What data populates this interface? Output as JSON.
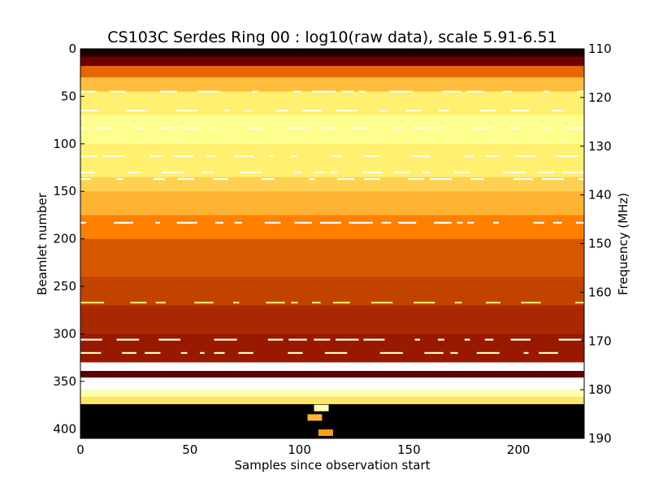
{
  "chart_data": {
    "type": "heatmap",
    "title": "CS103C Serdes Ring 00 : log10(raw data), scale 5.91-6.51",
    "xlabel": "Samples since observation start",
    "ylabel": "Beamlet number",
    "y2label": "Frequency (MHz)",
    "xlim": [
      0,
      230
    ],
    "ylim": [
      0,
      410
    ],
    "y2lim": [
      110,
      190
    ],
    "x_ticks": [
      "0",
      "50",
      "100",
      "150",
      "200"
    ],
    "y_ticks": [
      "0",
      "50",
      "100",
      "150",
      "200",
      "250",
      "300",
      "350",
      "400"
    ],
    "y2_ticks": [
      "110",
      "120",
      "130",
      "140",
      "150",
      "160",
      "170",
      "180",
      "190"
    ],
    "colormap": "afmhot",
    "color_scale": [
      5.91,
      6.51
    ],
    "grid": false,
    "row_bands": [
      {
        "from": 0,
        "to": 8,
        "level": 0.05
      },
      {
        "from": 8,
        "to": 18,
        "level": 0.22
      },
      {
        "from": 18,
        "to": 30,
        "level": 0.45
      },
      {
        "from": 30,
        "to": 45,
        "level": 0.62
      },
      {
        "from": 45,
        "to": 70,
        "level": 0.72
      },
      {
        "from": 70,
        "to": 100,
        "level": 0.78
      },
      {
        "from": 100,
        "to": 135,
        "level": 0.72
      },
      {
        "from": 135,
        "to": 150,
        "level": 0.66
      },
      {
        "from": 150,
        "to": 175,
        "level": 0.6
      },
      {
        "from": 175,
        "to": 200,
        "level": 0.5
      },
      {
        "from": 200,
        "to": 240,
        "level": 0.42
      },
      {
        "from": 240,
        "to": 270,
        "level": 0.38
      },
      {
        "from": 270,
        "to": 300,
        "level": 0.33
      },
      {
        "from": 300,
        "to": 330,
        "level": 0.3
      },
      {
        "from": 330,
        "to": 339,
        "level": 1.0
      },
      {
        "from": 339,
        "to": 346,
        "level": 0.18
      },
      {
        "from": 346,
        "to": 358,
        "level": 1.0
      },
      {
        "from": 358,
        "to": 366,
        "level": 0.85
      },
      {
        "from": 366,
        "to": 374,
        "level": 0.7
      },
      {
        "from": 374,
        "to": 410,
        "level": 0.0
      }
    ],
    "bright_lines": [
      {
        "beamlet": 45,
        "level": 0.97
      },
      {
        "beamlet": 65,
        "level": 0.95
      },
      {
        "beamlet": 83,
        "level": 0.97
      },
      {
        "beamlet": 113,
        "level": 0.95
      },
      {
        "beamlet": 130,
        "level": 0.96
      },
      {
        "beamlet": 137,
        "level": 0.97
      },
      {
        "beamlet": 183,
        "level": 0.98
      },
      {
        "beamlet": 267,
        "level": 0.7
      },
      {
        "beamlet": 306,
        "level": 0.98
      },
      {
        "beamlet": 320,
        "level": 0.85
      }
    ],
    "bright_spots": [
      {
        "sample": 110,
        "beamlet": 378,
        "level": 0.85
      },
      {
        "sample": 107,
        "beamlet": 388,
        "level": 0.6
      },
      {
        "sample": 112,
        "beamlet": 404,
        "level": 0.55
      }
    ]
  }
}
